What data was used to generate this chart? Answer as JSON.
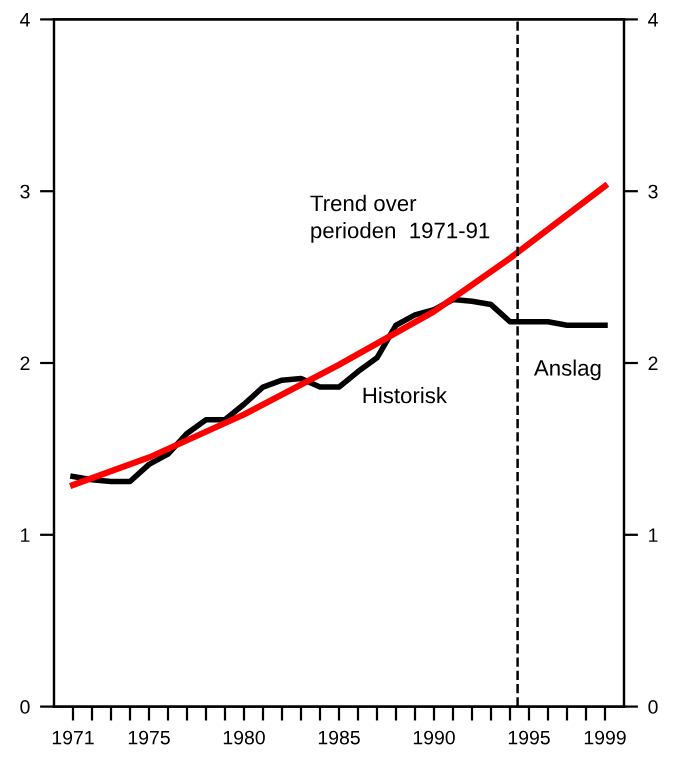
{
  "chart_data": {
    "type": "line",
    "x": [
      1971,
      1972,
      1973,
      1974,
      1975,
      1976,
      1977,
      1978,
      1979,
      1980,
      1981,
      1982,
      1983,
      1984,
      1985,
      1986,
      1987,
      1988,
      1989,
      1990,
      1991,
      1992,
      1993,
      1994,
      1995,
      1996,
      1997,
      1998,
      1999
    ],
    "series": [
      {
        "color": "#000000",
        "values": [
          1.34,
          1.32,
          1.31,
          1.31,
          1.41,
          1.47,
          1.59,
          1.67,
          1.67,
          1.76,
          1.86,
          1.9,
          1.91,
          1.86,
          1.86,
          1.95,
          2.03,
          2.22,
          2.28,
          2.31,
          2.37,
          2.36,
          2.34,
          2.24,
          2.24,
          2.24,
          2.22,
          2.22,
          2.22
        ]
      },
      {
        "color": "#ff0000",
        "x": [
          1971,
          1975,
          1980,
          1985,
          1990,
          1994,
          1999
        ],
        "values": [
          1.29,
          1.45,
          1.7,
          1.99,
          2.3,
          2.61,
          3.03
        ]
      }
    ],
    "xlim": [
      1970,
      2000
    ],
    "xticks": [
      {
        "value": 1971,
        "label": "1971"
      },
      {
        "value": 1972,
        "label": null
      },
      {
        "value": 1973,
        "label": null
      },
      {
        "value": 1974,
        "label": null
      },
      {
        "value": 1975,
        "label": "1975"
      },
      {
        "value": 1976,
        "label": null
      },
      {
        "value": 1977,
        "label": null
      },
      {
        "value": 1978,
        "label": null
      },
      {
        "value": 1979,
        "label": null
      },
      {
        "value": 1980,
        "label": "1980"
      },
      {
        "value": 1981,
        "label": null
      },
      {
        "value": 1982,
        "label": null
      },
      {
        "value": 1983,
        "label": null
      },
      {
        "value": 1984,
        "label": null
      },
      {
        "value": 1985,
        "label": "1985"
      },
      {
        "value": 1986,
        "label": null
      },
      {
        "value": 1987,
        "label": null
      },
      {
        "value": 1988,
        "label": null
      },
      {
        "value": 1989,
        "label": null
      },
      {
        "value": 1990,
        "label": "1990"
      },
      {
        "value": 1991,
        "label": null
      },
      {
        "value": 1992,
        "label": null
      },
      {
        "value": 1993,
        "label": null
      },
      {
        "value": 1994,
        "label": null
      },
      {
        "value": 1995,
        "label": "1995"
      },
      {
        "value": 1996,
        "label": null
      },
      {
        "value": 1997,
        "label": null
      },
      {
        "value": 1998,
        "label": null
      },
      {
        "value": 1999,
        "label": "1999"
      }
    ],
    "ylim": [
      0,
      4
    ],
    "yticks": [
      0,
      1,
      2,
      3,
      4
    ],
    "y2lim": [
      0,
      4
    ],
    "y2ticks": [
      0,
      1,
      2,
      3,
      4
    ],
    "grid": false,
    "legend": false,
    "ref_lines": [
      {
        "axis": "x",
        "value": 1994.4,
        "color": "#000000",
        "line_style": "dashed"
      }
    ],
    "annotations": [
      "Trend over\nperioden  1971-91",
      "Historisk",
      "Anslag"
    ]
  }
}
